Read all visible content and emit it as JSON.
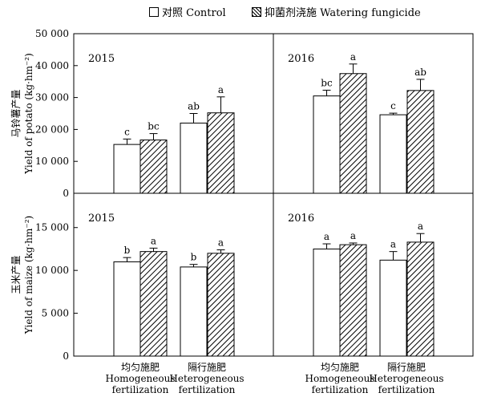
{
  "legend": {
    "control": "对照 Control",
    "fungicide": "抑菌剂浇施 Watering fungicide"
  },
  "colors": {
    "control": "#ffffff",
    "fungicide": "hatched-gray",
    "stroke": "#000000"
  },
  "chart_data": [
    {
      "type": "bar",
      "panel_label": "2015",
      "ylabel": "马铃薯产量 Yield of potato (kg·hm⁻²)",
      "ylim": [
        0,
        50000
      ],
      "yticks": [
        "0",
        "10 000",
        "20 000",
        "30 000",
        "40 000",
        "50 000"
      ],
      "categories": [
        "均匀施肥 Homogeneous fertilization",
        "隔行施肥 Heterogeneous fertilization"
      ],
      "series": [
        {
          "name": "对照 Control",
          "values": [
            15300,
            22000
          ],
          "errors": [
            1700,
            3000
          ],
          "letters": [
            "c",
            "ab"
          ]
        },
        {
          "name": "抑菌剂浇施 Watering fungicide",
          "values": [
            16700,
            25200
          ],
          "errors": [
            2000,
            5000
          ],
          "letters": [
            "bc",
            "a"
          ]
        }
      ]
    },
    {
      "type": "bar",
      "panel_label": "2016",
      "ylim": [
        0,
        50000
      ],
      "categories": [
        "均匀施肥 Homogeneous fertilization",
        "隔行施肥 Heterogeneous fertilization"
      ],
      "series": [
        {
          "name": "对照 Control",
          "values": [
            30500,
            24600
          ],
          "errors": [
            1800,
            500
          ],
          "letters": [
            "bc",
            "c"
          ]
        },
        {
          "name": "抑菌剂浇施 Watering fungicide",
          "values": [
            37500,
            32200
          ],
          "errors": [
            3000,
            3500
          ],
          "letters": [
            "a",
            "ab"
          ]
        }
      ]
    },
    {
      "type": "bar",
      "panel_label": "2015",
      "ylabel": "玉米产量 Yield of maize (kg·hm⁻²)",
      "ylim": [
        0,
        19000
      ],
      "yticks": [
        "0",
        "5 000",
        "10 000",
        "15 000"
      ],
      "categories": [
        "均匀施肥 Homogeneous fertilization",
        "隔行施肥 Heterogeneous fertilization"
      ],
      "series": [
        {
          "name": "对照 Control",
          "values": [
            11000,
            10400
          ],
          "errors": [
            500,
            300
          ],
          "letters": [
            "b",
            "b"
          ]
        },
        {
          "name": "抑菌剂浇施 Watering fungicide",
          "values": [
            12200,
            12000
          ],
          "errors": [
            400,
            400
          ],
          "letters": [
            "a",
            "a"
          ]
        }
      ]
    },
    {
      "type": "bar",
      "panel_label": "2016",
      "ylim": [
        0,
        19000
      ],
      "categories": [
        "均匀施肥 Homogeneous fertilization",
        "隔行施肥 Heterogeneous fertilization"
      ],
      "series": [
        {
          "name": "对照 Control",
          "values": [
            12500,
            11200
          ],
          "errors": [
            600,
            1000
          ],
          "letters": [
            "a",
            "a"
          ]
        },
        {
          "name": "抑菌剂浇施 Watering fungicide",
          "values": [
            13000,
            13300
          ],
          "errors": [
            200,
            1000
          ],
          "letters": [
            "a",
            "a"
          ]
        }
      ]
    }
  ],
  "x_labels": {
    "left": {
      "zh": "均匀施肥",
      "en1": "Homogeneous",
      "en2": "fertilization"
    },
    "right": {
      "zh": "隔行施肥",
      "en1": "Heterogeneous",
      "en2": "fertilization"
    }
  }
}
